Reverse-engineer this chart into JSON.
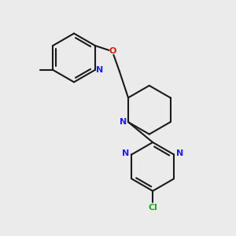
{
  "bg_color": "#ebebeb",
  "bond_color": "#1a1a1a",
  "n_color": "#2020ee",
  "o_color": "#cc2200",
  "cl_color": "#22aa22",
  "lw": 1.5,
  "fig_size": [
    3.0,
    3.0
  ],
  "dpi": 100,
  "xlim": [
    0,
    10
  ],
  "ylim": [
    0,
    10
  ]
}
